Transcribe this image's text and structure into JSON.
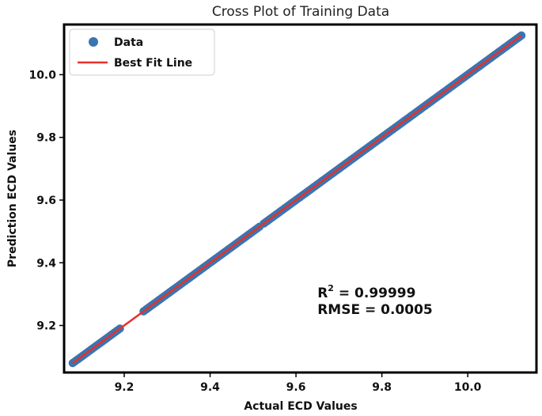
{
  "chart_data": {
    "type": "scatter",
    "title": "Cross Plot of Training Data",
    "xlabel": "Actual ECD Values",
    "ylabel": "Prediction ECD Values",
    "xlim": [
      9.06,
      10.16
    ],
    "ylim": [
      9.05,
      10.16
    ],
    "xticks": [
      9.2,
      9.4,
      9.6,
      9.8,
      10.0
    ],
    "yticks": [
      9.2,
      9.4,
      9.6,
      9.8,
      10.0
    ],
    "tick_labels": [
      "9.2",
      "9.4",
      "9.6",
      "9.8",
      "10.0"
    ],
    "grid": false,
    "legend_position": "top-left",
    "series": [
      {
        "name": "Data",
        "kind": "scatter",
        "color": "#3a75b0",
        "segments": [
          [
            9.08,
            9.19
          ],
          [
            9.245,
            9.5
          ],
          [
            9.505,
            9.515
          ],
          [
            9.525,
            10.125
          ]
        ],
        "values": [
          9.08,
          9.19,
          9.245,
          9.5,
          9.505,
          9.515,
          9.525,
          10.125
        ]
      },
      {
        "name": "Best Fit Line",
        "kind": "line",
        "color": "#e8302a",
        "x": [
          9.08,
          10.125
        ],
        "y": [
          9.08,
          10.125
        ]
      }
    ],
    "annotations": {
      "r2_label": "R",
      "r2_sup": "2",
      "r2_value": " = 0.99999",
      "rmse": "RMSE = 0.0005",
      "anchor": [
        9.65,
        9.29
      ]
    }
  }
}
